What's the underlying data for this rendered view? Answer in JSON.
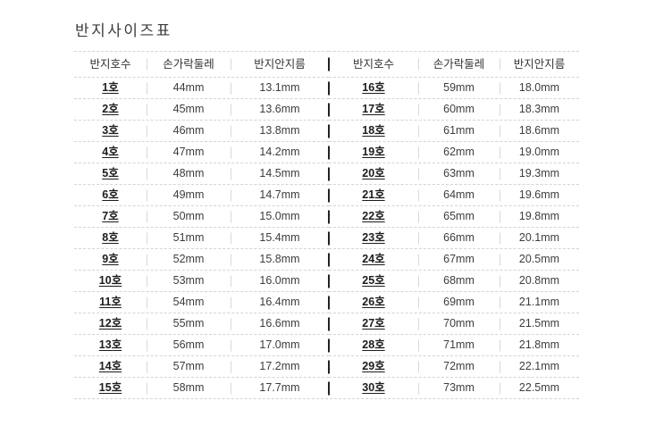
{
  "page": {
    "title": "반지사이즈표",
    "background": "#ffffff"
  },
  "colors": {
    "title_text": "#3b3b3b",
    "header_text": "#333333",
    "size_text": "#1c1c1c",
    "value_text": "#3d3d3d",
    "dashed_line": "#d4d4d4",
    "column_divider": "#d8d8d8",
    "table_divider": "#222222"
  },
  "chart_data": {
    "type": "table",
    "title": "반지사이즈표",
    "columns": [
      "반지호수",
      "손가락둘레",
      "반지안지름"
    ],
    "layout": "two tables side by side, dashed horizontal row separators, short light vertical column dividers, dark vertical divider between tables",
    "tables": [
      {
        "rows": [
          [
            "1호",
            "44mm",
            "13.1mm"
          ],
          [
            "2호",
            "45mm",
            "13.6mm"
          ],
          [
            "3호",
            "46mm",
            "13.8mm"
          ],
          [
            "4호",
            "47mm",
            "14.2mm"
          ],
          [
            "5호",
            "48mm",
            "14.5mm"
          ],
          [
            "6호",
            "49mm",
            "14.7mm"
          ],
          [
            "7호",
            "50mm",
            "15.0mm"
          ],
          [
            "8호",
            "51mm",
            "15.4mm"
          ],
          [
            "9호",
            "52mm",
            "15.8mm"
          ],
          [
            "10호",
            "53mm",
            "16.0mm"
          ],
          [
            "11호",
            "54mm",
            "16.4mm"
          ],
          [
            "12호",
            "55mm",
            "16.6mm"
          ],
          [
            "13호",
            "56mm",
            "17.0mm"
          ],
          [
            "14호",
            "57mm",
            "17.2mm"
          ],
          [
            "15호",
            "58mm",
            "17.7mm"
          ]
        ]
      },
      {
        "rows": [
          [
            "16호",
            "59mm",
            "18.0mm"
          ],
          [
            "17호",
            "60mm",
            "18.3mm"
          ],
          [
            "18호",
            "61mm",
            "18.6mm"
          ],
          [
            "19호",
            "62mm",
            "19.0mm"
          ],
          [
            "20호",
            "63mm",
            "19.3mm"
          ],
          [
            "21호",
            "64mm",
            "19.6mm"
          ],
          [
            "22호",
            "65mm",
            "19.8mm"
          ],
          [
            "23호",
            "66mm",
            "20.1mm"
          ],
          [
            "24호",
            "67mm",
            "20.5mm"
          ],
          [
            "25호",
            "68mm",
            "20.8mm"
          ],
          [
            "26호",
            "69mm",
            "21.1mm"
          ],
          [
            "27호",
            "70mm",
            "21.5mm"
          ],
          [
            "28호",
            "71mm",
            "21.8mm"
          ],
          [
            "29호",
            "72mm",
            "22.1mm"
          ],
          [
            "30호",
            "73mm",
            "22.5mm"
          ]
        ]
      }
    ]
  }
}
